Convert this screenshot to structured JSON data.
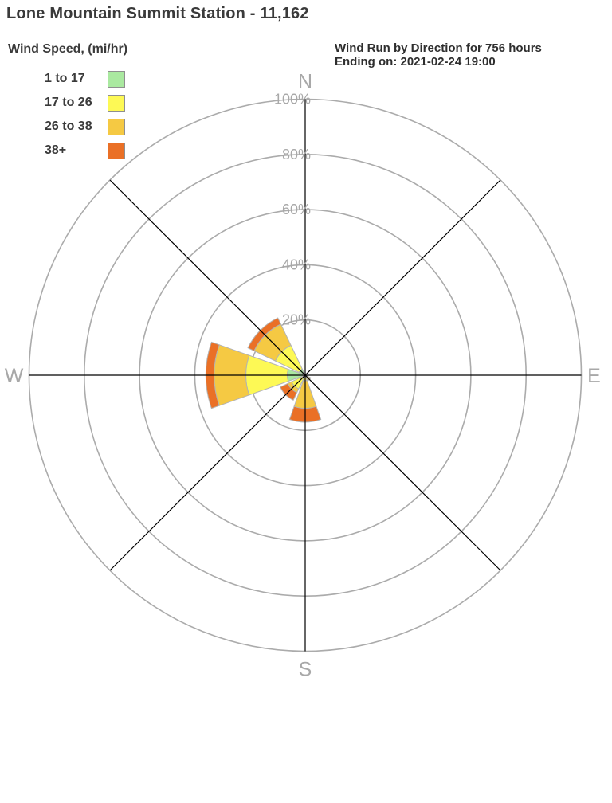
{
  "title": "Lone Mountain Summit Station - 11,162",
  "header": {
    "line1": "Wind Run by Direction for 756 hours",
    "line2": "Ending on: 2021-02-24 19:00"
  },
  "legend": {
    "title": "Wind Speed, (mi/hr)",
    "items": [
      {
        "label": "1 to 17",
        "color": "#aae9a0"
      },
      {
        "label": "17 to 26",
        "color": "#fdf955"
      },
      {
        "label": "26 to 38",
        "color": "#f5c943"
      },
      {
        "label": "38+",
        "color": "#ea7026"
      }
    ]
  },
  "chart_data": {
    "type": "wind-rose",
    "title": "Wind Run by Direction (% of wind run)",
    "directions": [
      "N",
      "NE",
      "E",
      "SE",
      "S",
      "SW",
      "W",
      "NW"
    ],
    "series": [
      {
        "name": "1 to 17",
        "color": "#aae9a0",
        "values": [
          0,
          0,
          0,
          0.6,
          1,
          1,
          6.5,
          2.5
        ]
      },
      {
        "name": "17 to 26",
        "color": "#fdf955",
        "values": [
          0,
          0,
          0,
          0.6,
          1,
          4.5,
          15,
          9.5
        ]
      },
      {
        "name": "26 to 38",
        "color": "#f5c943",
        "values": [
          0,
          0,
          0,
          1,
          10,
          1.5,
          11.5,
          8.5
        ]
      },
      {
        "name": "38+",
        "color": "#ea7026",
        "values": [
          0,
          0,
          0,
          0,
          5,
          3,
          3,
          2.5
        ]
      }
    ],
    "totals_pct": {
      "N": 0,
      "NE": 0,
      "E": 0,
      "SE": 2.2,
      "S": 17,
      "SW": 10,
      "W": 36,
      "NW": 23
    },
    "rings_pct": [
      20,
      40,
      60,
      80,
      100
    ],
    "ring_labels": [
      "20%",
      "40%",
      "60%",
      "80%",
      "100%"
    ],
    "axis_labels": {
      "n": "N",
      "e": "E",
      "s": "S",
      "w": "W"
    },
    "max_pct": 100,
    "petal_half_angle_deg": 19.5,
    "grid_color": "#ababab",
    "spoke_color": "#000000",
    "tick_label_color": "#a8a8a8",
    "petal_border_color": "#b3b3b3",
    "legend_position": "top-left",
    "grid": true
  }
}
